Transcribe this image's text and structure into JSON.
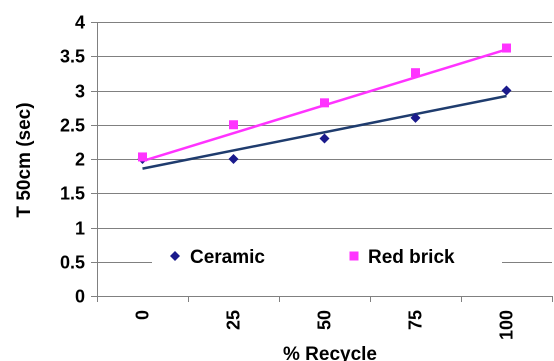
{
  "chart_data": {
    "type": "scatter",
    "xlabel": "% Recycle",
    "ylabel": "T 50cm (sec)",
    "x": [
      0,
      25,
      50,
      75,
      100
    ],
    "xticks": [
      "0",
      "25",
      "50",
      "75",
      "100"
    ],
    "yticks": [
      "0",
      "0.5",
      "1",
      "1.5",
      "2",
      "2.5",
      "3",
      "3.5",
      "4"
    ],
    "ylim": [
      0,
      4
    ],
    "grid": "horizontal",
    "legend_position": "bottom-right",
    "series": [
      {
        "name": "Ceramic",
        "marker": "diamond",
        "color": "#1a1a8c",
        "values": [
          2.0,
          2.0,
          2.3,
          2.6,
          3.0
        ],
        "trendline": {
          "color": "#1f3c6e",
          "start": 1.86,
          "end": 2.92
        }
      },
      {
        "name": "Red brick",
        "marker": "square",
        "color": "#ff33ff",
        "values": [
          2.03,
          2.5,
          2.82,
          3.26,
          3.62
        ],
        "trendline": {
          "color": "#ff33ff",
          "start": 1.97,
          "end": 3.6
        }
      }
    ]
  }
}
